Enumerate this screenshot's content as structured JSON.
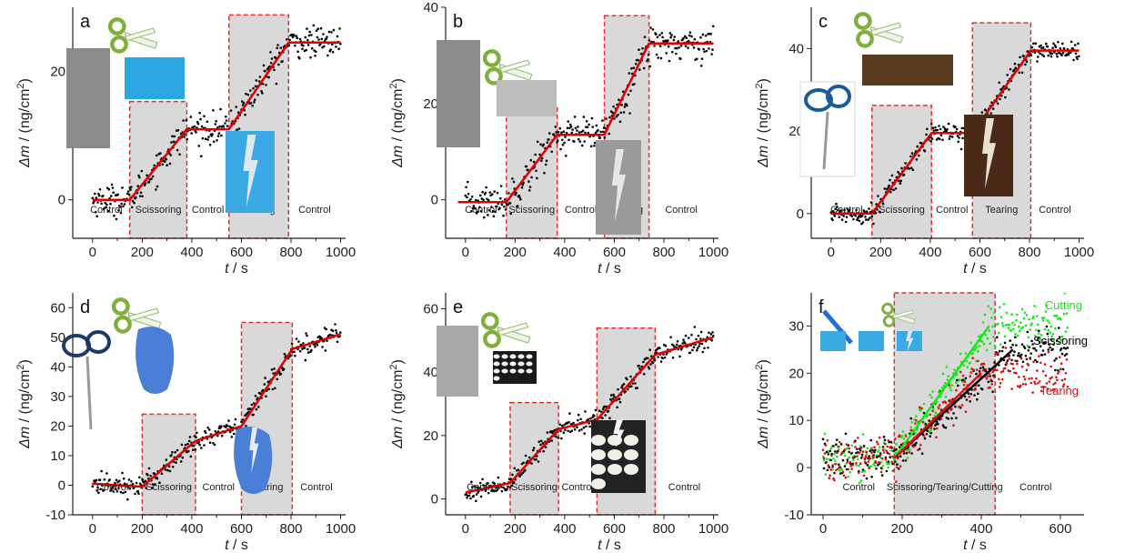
{
  "colors": {
    "data_points": "#000000",
    "fit_line": "#e00000",
    "region_fill": "#d9d9d9",
    "region_border": "#e53030",
    "cutting": "#19e619",
    "scissoring": "#000000",
    "tearing": "#e01010"
  },
  "chart_data": [
    {
      "panel": "a",
      "type": "scatter",
      "xlabel": "t / s",
      "ylabel": "Δm / (ng/cm2)",
      "xlim": [
        -80,
        1020
      ],
      "ylim": [
        -6,
        30
      ],
      "xticks": [
        0,
        200,
        400,
        600,
        800,
        1000
      ],
      "yticks": [
        0,
        20
      ],
      "regions": [
        {
          "label": "Control",
          "x": [
            -40,
            150
          ],
          "shaded": false
        },
        {
          "label": "Scissoring",
          "x": [
            150,
            380
          ],
          "shaded": true
        },
        {
          "label": "Control",
          "x": [
            380,
            550
          ],
          "shaded": false
        },
        {
          "label": "Tearing",
          "x": [
            550,
            790
          ],
          "shaded": true
        },
        {
          "label": "Control",
          "x": [
            790,
            1000
          ],
          "shaded": false
        }
      ],
      "fit_line": {
        "x": [
          0,
          150,
          380,
          550,
          790,
          1000
        ],
        "y": [
          0,
          0,
          11,
          11,
          24.5,
          24.5
        ]
      },
      "noise": 1.2,
      "x_start": 0,
      "icons": [
        "scissors-photo",
        "blue-plastic-sheet",
        "scissors-icon",
        "torn-plastic-photo"
      ]
    },
    {
      "panel": "b",
      "type": "scatter",
      "xlabel": "t / s",
      "ylabel": "Δm / (ng/cm2)",
      "xlim": [
        -80,
        1020
      ],
      "ylim": [
        -8,
        40
      ],
      "xticks": [
        0,
        200,
        400,
        600,
        800,
        1000
      ],
      "yticks": [
        0,
        20,
        40
      ],
      "regions": [
        {
          "label": "Control",
          "x": [
            -40,
            165
          ],
          "shaded": false
        },
        {
          "label": "Scissoring",
          "x": [
            165,
            370
          ],
          "shaded": true
        },
        {
          "label": "Control",
          "x": [
            370,
            560
          ],
          "shaded": false
        },
        {
          "label": "Tearing",
          "x": [
            560,
            740
          ],
          "shaded": true
        },
        {
          "label": "Control",
          "x": [
            740,
            1000
          ],
          "shaded": false
        }
      ],
      "fit_line": {
        "x": [
          -30,
          165,
          370,
          560,
          740,
          1000
        ],
        "y": [
          -0.5,
          -0.5,
          13.5,
          13.5,
          32.5,
          32.5
        ]
      },
      "noise": 1.8,
      "x_start": 0,
      "icons": [
        "scissors-photo",
        "foil-photo",
        "scissors-icon",
        "torn-foil-photo"
      ]
    },
    {
      "panel": "c",
      "type": "scatter",
      "xlabel": "t / s",
      "ylabel": "Δm / (ng/cm2)",
      "xlim": [
        -80,
        1020
      ],
      "ylim": [
        -6,
        50
      ],
      "xticks": [
        0,
        200,
        400,
        600,
        800,
        1000
      ],
      "yticks": [
        0,
        20,
        40
      ],
      "regions": [
        {
          "label": "Control",
          "x": [
            -40,
            165
          ],
          "shaded": false
        },
        {
          "label": "Scissoring",
          "x": [
            165,
            405
          ],
          "shaded": true
        },
        {
          "label": "Control",
          "x": [
            405,
            570
          ],
          "shaded": false
        },
        {
          "label": "Tearing",
          "x": [
            570,
            805
          ],
          "shaded": true
        },
        {
          "label": "Control",
          "x": [
            805,
            1000
          ],
          "shaded": false
        }
      ],
      "fit_line": {
        "x": [
          0,
          165,
          405,
          570,
          805,
          1000
        ],
        "y": [
          0,
          0,
          19.5,
          19.5,
          39.5,
          39.5
        ]
      },
      "noise": 1.2,
      "x_start": 0,
      "icons": [
        "scissors-icon",
        "bottle-photo",
        "scissors-photo",
        "torn-bottle-photo"
      ]
    },
    {
      "panel": "d",
      "type": "scatter",
      "xlabel": "t / s",
      "ylabel": "Δm / (ng/cm2)",
      "xlim": [
        -80,
        1020
      ],
      "ylim": [
        -10,
        65
      ],
      "xticks": [
        0,
        200,
        400,
        600,
        800,
        1000
      ],
      "yticks": [
        -10,
        0,
        10,
        20,
        30,
        40,
        50,
        60
      ],
      "regions": [
        {
          "label": "Control",
          "x": [
            -40,
            200
          ],
          "shaded": false
        },
        {
          "label": "Scissoring",
          "x": [
            200,
            415
          ],
          "shaded": true
        },
        {
          "label": "Control",
          "x": [
            415,
            600
          ],
          "shaded": false
        },
        {
          "label": "Tearing",
          "x": [
            600,
            805
          ],
          "shaded": true
        },
        {
          "label": "Control",
          "x": [
            805,
            1000
          ],
          "shaded": false
        }
      ],
      "fit_line": {
        "x": [
          0,
          200,
          415,
          600,
          805,
          1000
        ],
        "y": [
          0.5,
          -0.5,
          15,
          20,
          46,
          51
        ]
      },
      "noise": 1.8,
      "x_start": 0,
      "icons": [
        "scissors-icon",
        "glove-photo",
        "scissors-photo",
        "torn-glove-photo"
      ]
    },
    {
      "panel": "e",
      "type": "scatter",
      "xlabel": "t / s",
      "ylabel": "Δm / (ng/cm2)",
      "xlim": [
        -80,
        1020
      ],
      "ylim": [
        -5,
        65
      ],
      "xticks": [
        0,
        200,
        400,
        600,
        800,
        1000
      ],
      "yticks": [
        0,
        20,
        40,
        60
      ],
      "regions": [
        {
          "label": "Control",
          "x": [
            -40,
            180
          ],
          "shaded": false
        },
        {
          "label": "Scissoring",
          "x": [
            180,
            375
          ],
          "shaded": true
        },
        {
          "label": "Control",
          "x": [
            375,
            530
          ],
          "shaded": false
        },
        {
          "label": "Tearing",
          "x": [
            530,
            765
          ],
          "shaded": true
        },
        {
          "label": "Control",
          "x": [
            765,
            1000
          ],
          "shaded": false
        }
      ],
      "fit_line": {
        "x": [
          0,
          180,
          375,
          530,
          765,
          1000
        ],
        "y": [
          2,
          5,
          22,
          25,
          45.5,
          51
        ]
      },
      "noise": 1.5,
      "x_start": 0,
      "icons": [
        "scissors-photo",
        "foam-beads-photo",
        "scissors-icon",
        "torn-foam-photo"
      ]
    },
    {
      "panel": "f",
      "type": "scatter",
      "xlabel": "t / s",
      "ylabel": "Δm / (ng/cm2)",
      "xlim": [
        -30,
        660
      ],
      "ylim": [
        -10,
        37
      ],
      "xticks": [
        0,
        200,
        400,
        600
      ],
      "yticks": [
        -10,
        0,
        10,
        20,
        30
      ],
      "regions": [
        {
          "label": "Control",
          "x": [
            0,
            180
          ],
          "shaded": false
        },
        {
          "label": "Scissoring/Tearing/Cutting",
          "x": [
            180,
            435
          ],
          "shaded": true
        },
        {
          "label": "Control",
          "x": [
            435,
            640
          ],
          "shaded": false
        }
      ],
      "series": [
        {
          "name": "Cutting",
          "color": "#19e619",
          "x": [
            0,
            180,
            420,
            620
          ],
          "y": [
            2,
            2,
            30,
            30
          ],
          "noise": 2.2
        },
        {
          "name": "Scissoring",
          "color": "#000000",
          "x": [
            0,
            180,
            480,
            620
          ],
          "y": [
            2,
            2,
            25,
            25
          ],
          "noise": 2.2
        },
        {
          "name": "Tearing",
          "color": "#e01010",
          "x": [
            0,
            180,
            400,
            620
          ],
          "y": [
            2,
            2,
            20,
            20
          ],
          "noise": 2.2
        }
      ],
      "fit_lines": [
        {
          "color": "#19e619",
          "x": [
            180,
            420
          ],
          "y": [
            2,
            30
          ]
        },
        {
          "color": "#000000",
          "x": [
            180,
            480
          ],
          "y": [
            2,
            25
          ]
        },
        {
          "color": "#e01010",
          "x": [
            180,
            400
          ],
          "y": [
            2,
            20
          ]
        }
      ],
      "icons": [
        "scalpel-icon",
        "scissors-icon",
        "plastic-sheet-photos"
      ]
    }
  ]
}
